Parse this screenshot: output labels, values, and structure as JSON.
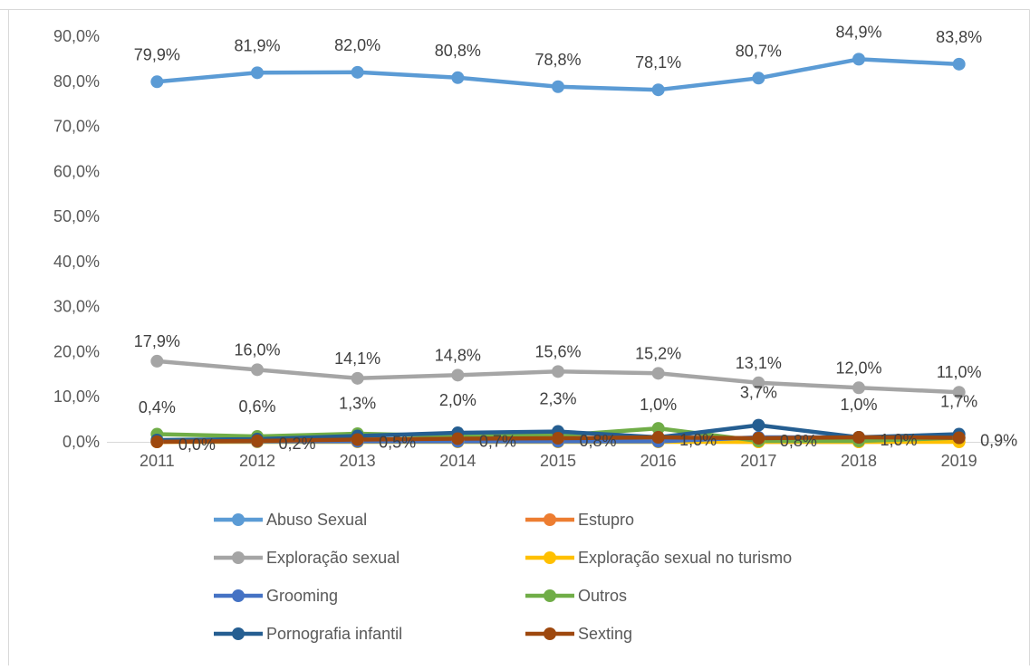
{
  "chart_data": {
    "type": "line",
    "title": "",
    "xlabel": "",
    "ylabel": "",
    "x": [
      "2011",
      "2012",
      "2013",
      "2014",
      "2015",
      "2016",
      "2017",
      "2018",
      "2019"
    ],
    "ylim": [
      0,
      90
    ],
    "y_ticks": [
      "0,0%",
      "10,0%",
      "20,0%",
      "30,0%",
      "40,0%",
      "50,0%",
      "60,0%",
      "70,0%",
      "80,0%",
      "90,0%"
    ],
    "grid": false,
    "legend_position": "bottom",
    "series": [
      {
        "name": "Abuso Sexual",
        "color": "#5b9bd5",
        "values": [
          79.9,
          81.9,
          82.0,
          80.8,
          78.8,
          78.1,
          80.7,
          84.9,
          83.8
        ],
        "labels": [
          "79,9%",
          "81,9%",
          "82,0%",
          "80,8%",
          "78,8%",
          "78,1%",
          "80,7%",
          "84,9%",
          "83,8%"
        ]
      },
      {
        "name": "Estupro",
        "color": "#ed7d31",
        "values": [
          0.0,
          0.1,
          0.1,
          0.1,
          0.1,
          0.1,
          0.0,
          0.0,
          0.1
        ],
        "labels": []
      },
      {
        "name": "Exploração sexual",
        "color": "#a5a5a5",
        "values": [
          17.9,
          16.0,
          14.1,
          14.8,
          15.6,
          15.2,
          13.1,
          12.0,
          11.0
        ],
        "labels": [
          "17,9%",
          "16,0%",
          "14,1%",
          "14,8%",
          "15,6%",
          "15,2%",
          "13,1%",
          "12,0%",
          "11,0%"
        ]
      },
      {
        "name": "Exploração sexual no turismo",
        "color": "#ffc000",
        "values": [
          0.0,
          0.0,
          0.0,
          0.0,
          0.0,
          0.0,
          0.0,
          0.0,
          0.0
        ],
        "labels": []
      },
      {
        "name": "Grooming",
        "color": "#4472c4",
        "values": [
          0.1,
          0.1,
          0.1,
          0.1,
          0.1,
          0.1,
          1.0,
          1.0,
          1.0
        ],
        "labels": []
      },
      {
        "name": "Outros",
        "color": "#70ad47",
        "values": [
          1.7,
          1.2,
          1.8,
          1.3,
          1.4,
          3.0,
          0.2,
          0.2,
          0.9
        ],
        "labels": []
      },
      {
        "name": "Pornografia infantil",
        "color": "#255e91",
        "values": [
          0.4,
          0.6,
          1.3,
          2.0,
          2.3,
          1.0,
          3.7,
          1.0,
          1.7
        ],
        "labels": [
          "0,4%",
          "0,6%",
          "1,3%",
          "2,0%",
          "2,3%",
          "1,0%",
          "3,7%",
          "1,0%",
          "1,7%"
        ]
      },
      {
        "name": "Sexting",
        "color": "#9e480e",
        "values": [
          0.0,
          0.2,
          0.5,
          0.7,
          0.8,
          1.0,
          0.8,
          1.0,
          0.9
        ],
        "labels": [
          "0,0%",
          "0,2%",
          "0,5%",
          "0,7%",
          "0,8%",
          "1,0%",
          "0,8%",
          "1,0%",
          "0,9%"
        ]
      }
    ]
  }
}
